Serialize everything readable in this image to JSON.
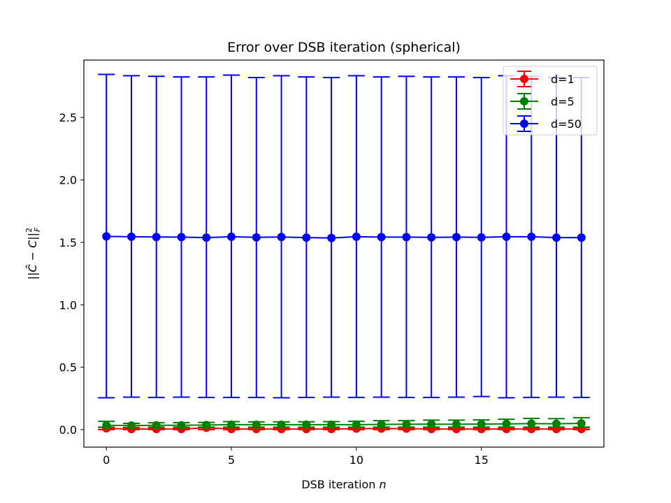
{
  "chart_data": {
    "type": "line",
    "title": "Error over DSB iteration (spherical)",
    "xlabel": "DSB iteration n",
    "ylabel": "||Ĉ − C||²_F",
    "xlim": [
      -0.9,
      19.9
    ],
    "ylim": [
      -0.14,
      2.96
    ],
    "xticks": [
      0,
      5,
      10,
      15
    ],
    "yticks": [
      0.0,
      0.5,
      1.0,
      1.5,
      2.0,
      2.5
    ],
    "legend_position": "top-right",
    "grid": false,
    "x": [
      0,
      1,
      2,
      3,
      4,
      5,
      6,
      7,
      8,
      9,
      10,
      11,
      12,
      13,
      14,
      15,
      16,
      17,
      18,
      19
    ],
    "series": [
      {
        "name": "d=1",
        "color": "#ff0000",
        "values": [
          0.01,
          0.005,
          0.005,
          0.005,
          0.015,
          0.005,
          0.005,
          0.005,
          0.005,
          0.005,
          0.008,
          0.008,
          0.008,
          0.005,
          0.005,
          0.005,
          0.005,
          0.005,
          0.005,
          0.005
        ],
        "err_lower": [
          0.0,
          0.0,
          0.0,
          0.0,
          0.0,
          0.0,
          0.0,
          0.0,
          0.0,
          0.0,
          0.0,
          0.0,
          0.0,
          0.0,
          0.0,
          0.0,
          0.0,
          0.0,
          0.0,
          0.0
        ],
        "err_upper": [
          0.018,
          0.014,
          0.014,
          0.014,
          0.018,
          0.014,
          0.014,
          0.014,
          0.014,
          0.014,
          0.016,
          0.016,
          0.016,
          0.014,
          0.014,
          0.014,
          0.014,
          0.014,
          0.014,
          0.014
        ]
      },
      {
        "name": "d=5",
        "color": "#008000",
        "values": [
          0.035,
          0.033,
          0.035,
          0.035,
          0.037,
          0.04,
          0.04,
          0.04,
          0.04,
          0.04,
          0.04,
          0.042,
          0.043,
          0.044,
          0.043,
          0.045,
          0.046,
          0.048,
          0.047,
          0.05
        ],
        "err_lower": [
          0.02,
          0.018,
          0.02,
          0.02,
          0.02,
          0.02,
          0.02,
          0.02,
          0.02,
          0.02,
          0.02,
          0.02,
          0.02,
          0.02,
          0.02,
          0.02,
          0.02,
          0.02,
          0.02,
          0.02
        ],
        "err_upper": [
          0.066,
          0.05,
          0.055,
          0.056,
          0.058,
          0.064,
          0.062,
          0.062,
          0.063,
          0.064,
          0.066,
          0.072,
          0.072,
          0.076,
          0.076,
          0.078,
          0.083,
          0.09,
          0.088,
          0.096
        ]
      },
      {
        "name": "d=50",
        "color": "#0000ff",
        "values": [
          1.548,
          1.545,
          1.543,
          1.542,
          1.538,
          1.545,
          1.54,
          1.543,
          1.538,
          1.535,
          1.545,
          1.542,
          1.542,
          1.54,
          1.542,
          1.54,
          1.545,
          1.545,
          1.538,
          1.538
        ],
        "err_lower": [
          0.255,
          0.26,
          0.258,
          0.26,
          0.258,
          0.258,
          0.258,
          0.255,
          0.258,
          0.26,
          0.258,
          0.26,
          0.258,
          0.258,
          0.26,
          0.265,
          0.255,
          0.258,
          0.26,
          0.258
        ],
        "err_upper": [
          2.845,
          2.835,
          2.83,
          2.825,
          2.825,
          2.84,
          2.82,
          2.835,
          2.825,
          2.82,
          2.835,
          2.825,
          2.83,
          2.825,
          2.825,
          2.82,
          2.835,
          2.83,
          2.82,
          2.82
        ]
      }
    ]
  }
}
